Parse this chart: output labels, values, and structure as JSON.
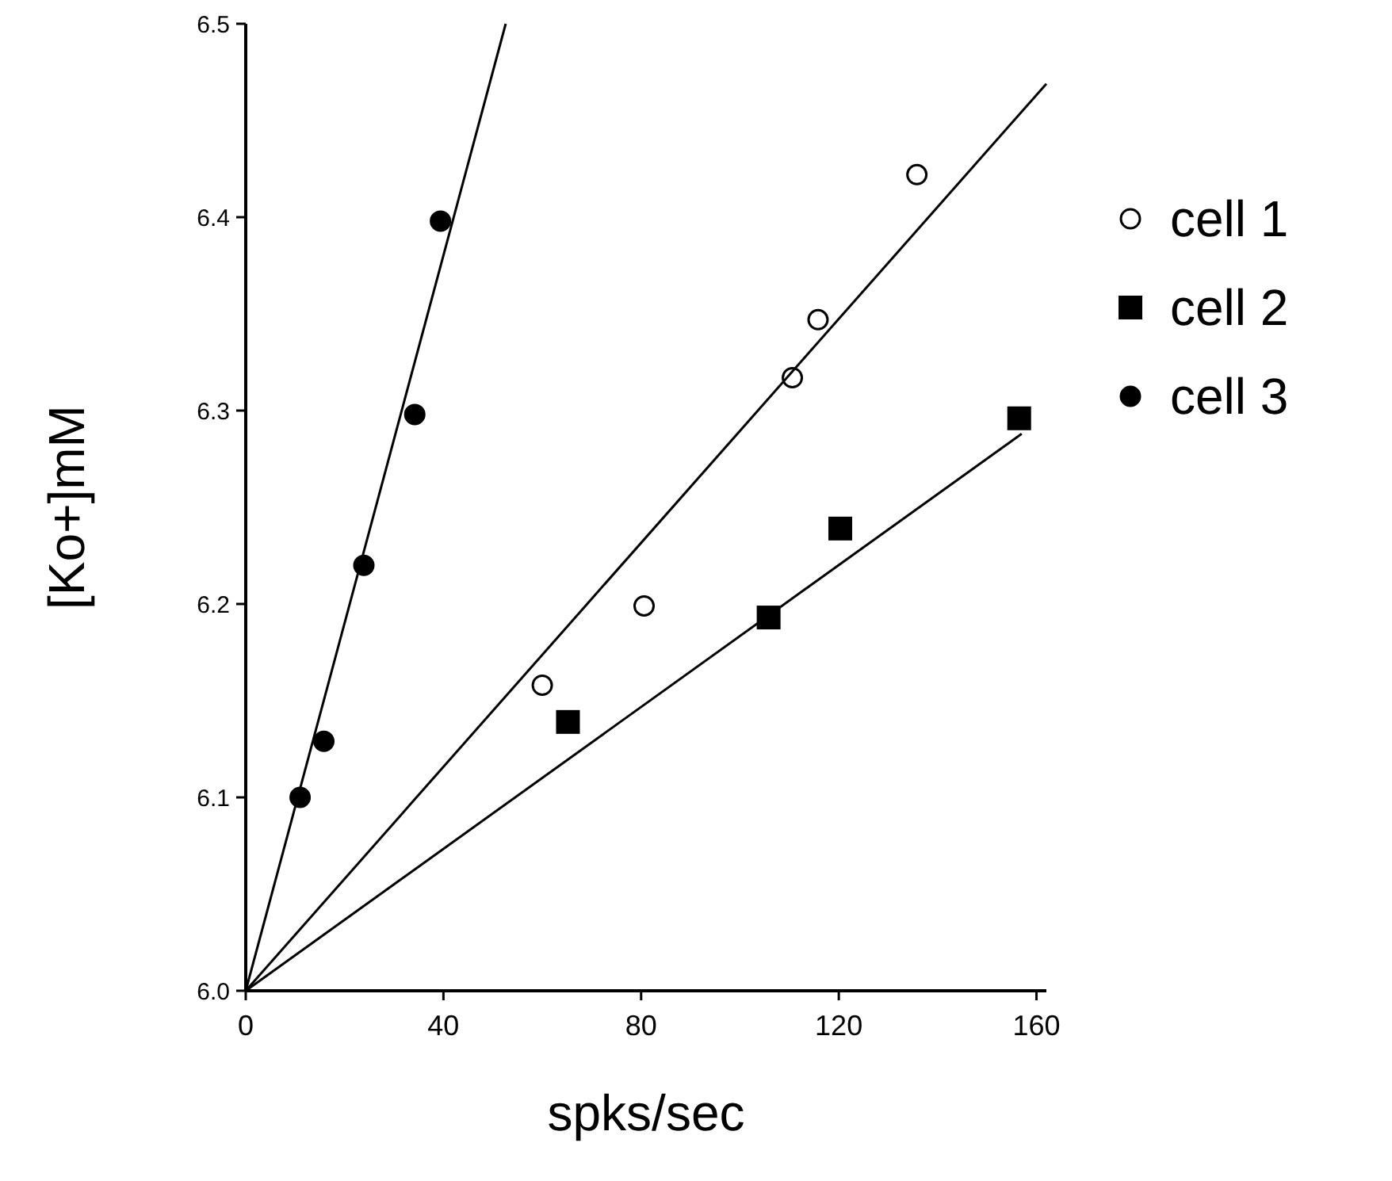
{
  "chart_data": {
    "type": "scatter",
    "xlabel": "spks/sec",
    "ylabel": "[Ko+]mM",
    "xlim": [
      0,
      162
    ],
    "ylim": [
      6.0,
      6.5
    ],
    "xticks": [
      0,
      40,
      80,
      120,
      160
    ],
    "yticks": [
      {
        "value": 6.0,
        "label": "6.0"
      },
      {
        "value": 6.1,
        "label": "6.1"
      },
      {
        "value": 6.2,
        "label": "6.2"
      },
      {
        "value": 6.3,
        "label": "6.3"
      },
      {
        "value": 6.4,
        "label": "6.4"
      },
      {
        "value": 6.5,
        "label": "6.5"
      }
    ],
    "grid": false,
    "legend": "right",
    "series": [
      {
        "name": "cell 1",
        "color": "#ffffff",
        "marker": "circle",
        "x": [
          60,
          80.6,
          110.6,
          115.8,
          135.8
        ],
        "values": [
          6.158,
          6.199,
          6.317,
          6.347,
          6.422
        ]
      },
      {
        "name": "cell 2",
        "color": "#000000",
        "marker": "square",
        "x": [
          65.2,
          105.8,
          120.3,
          156.5
        ],
        "values": [
          6.139,
          6.193,
          6.239,
          6.296
        ]
      },
      {
        "name": "cell 3",
        "color": "#000000",
        "marker": "circle",
        "x": [
          11,
          15.8,
          23.9,
          34.2,
          39.4
        ],
        "values": [
          6.1,
          6.129,
          6.22,
          6.298,
          6.398
        ]
      },
      {
        "type": "line",
        "color": "#000000",
        "x": [
          0,
          162
        ],
        "values": [
          6.0,
          6.469
        ]
      },
      {
        "type": "line",
        "color": "#000000",
        "x": [
          0,
          157
        ],
        "values": [
          6.0,
          6.288
        ]
      },
      {
        "type": "line",
        "color": "#000000",
        "x": [
          0,
          52.6
        ],
        "values": [
          6.0,
          6.5
        ]
      }
    ]
  }
}
